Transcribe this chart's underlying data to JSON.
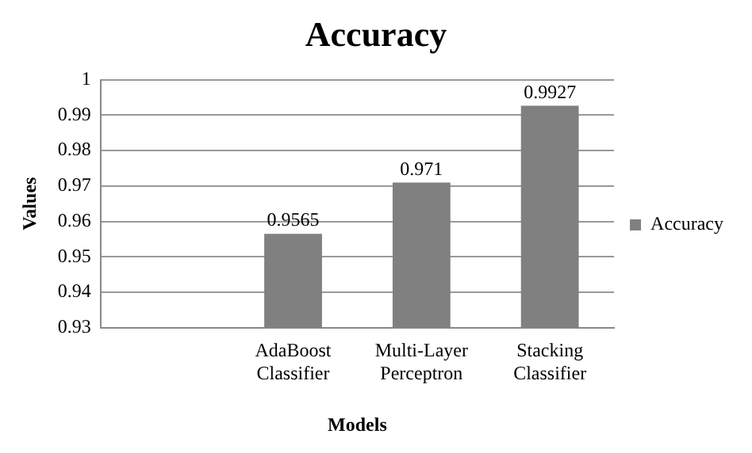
{
  "chart_data": {
    "type": "bar",
    "title": "Accuracy",
    "xlabel": "Models",
    "ylabel": "Values",
    "categories": [
      null,
      "AdaBoost Classifier",
      "Multi-Layer Perceptron",
      "Stacking Classifier"
    ],
    "series": [
      {
        "name": "Accuracy",
        "color": "#808080",
        "values": [
          null,
          0.9565,
          0.971,
          0.9927
        ]
      }
    ],
    "ylim": [
      0.93,
      1
    ],
    "yticks": [
      0.93,
      0.94,
      0.95,
      0.96,
      0.97,
      0.98,
      0.99,
      1
    ],
    "grid": "y",
    "legend": "right",
    "data_labels": true
  }
}
